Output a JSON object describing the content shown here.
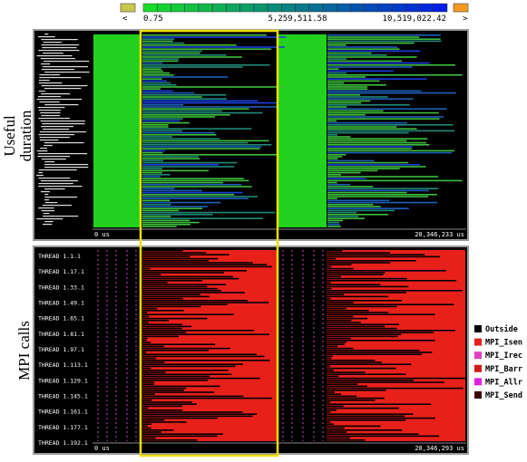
{
  "color_scale": {
    "below": "<",
    "min": "0.75",
    "mid": "5,259,511.58",
    "max": "10,519,022.42",
    "above": ">"
  },
  "panels": [
    {
      "side_label": [
        "Useful",
        "duration"
      ],
      "start": "0 us",
      "end": "20,346,233 us"
    },
    {
      "side_label": [
        "MPI calls"
      ],
      "start": "0 us",
      "end": "20,346,293 us",
      "threads": [
        "THREAD 1.1.1",
        "THREAD 1.17.1",
        "THREAD 1.33.1",
        "THREAD 1.49.1",
        "THREAD 1.65.1",
        "THREAD 1.81.1",
        "THREAD 1.97.1",
        "THREAD 1.113.1",
        "THREAD 1.129.1",
        "THREAD 1.145.1",
        "THREAD 1.161.1",
        "THREAD 1.177.1",
        "THREAD 1.192.1"
      ]
    }
  ],
  "legend": [
    "Outside",
    "MPI_Isen",
    "MPI_Irec",
    "MPI_Barr",
    "MPI_Allr",
    "MPI_Send"
  ]
}
